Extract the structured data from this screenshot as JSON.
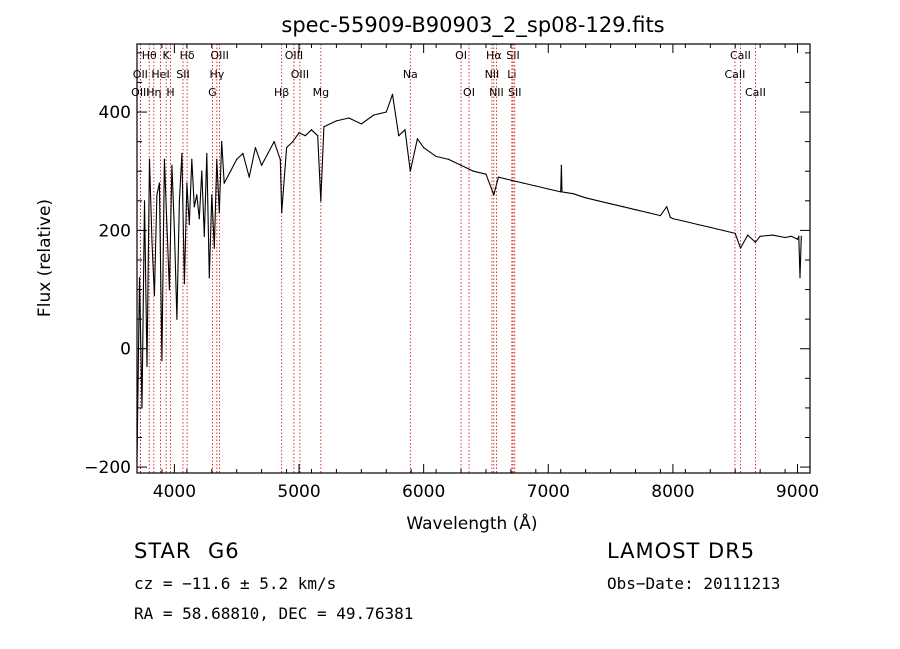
{
  "chart_data": {
    "type": "line",
    "title": "spec-55909-B90903_2_sp08-129.fits",
    "xlabel": "Wavelength (Å)",
    "ylabel": "Flux (relative)",
    "xlim": [
      3700,
      9100
    ],
    "ylim": [
      -210,
      515
    ],
    "xticks": [
      4000,
      5000,
      6000,
      7000,
      8000,
      9000
    ],
    "yticks": [
      -200,
      0,
      200,
      400
    ],
    "grid": false,
    "line_color": "#000000",
    "marker_color": "#cc0000",
    "series": [
      {
        "x": [
          3700,
          3720,
          3740,
          3760,
          3780,
          3800,
          3820,
          3840,
          3860,
          3880,
          3900,
          3920,
          3940,
          3960,
          3980,
          4000,
          4020,
          4040,
          4060,
          4080,
          4100,
          4120,
          4140,
          4160,
          4180,
          4200,
          4220,
          4240,
          4260,
          4280,
          4300,
          4320,
          4340,
          4360,
          4380,
          4400,
          4450,
          4500,
          4550,
          4600,
          4650,
          4700,
          4750,
          4800,
          4850,
          4861,
          4900,
          4950,
          5000,
          5050,
          5100,
          5150,
          5175,
          5200,
          5300,
          5400,
          5500,
          5600,
          5700,
          5750,
          5800,
          5850,
          5893,
          5950,
          6000,
          6100,
          6200,
          6300,
          6400,
          6500,
          6563,
          6600,
          6700,
          6800,
          6900,
          7000,
          7100,
          7105,
          7110,
          7200,
          7300,
          7400,
          7500,
          7600,
          7700,
          7800,
          7900,
          7950,
          7980,
          8000,
          8100,
          8200,
          8300,
          8400,
          8500,
          8542,
          8600,
          8662,
          8700,
          8800,
          8900,
          8950,
          9000,
          9010,
          9020,
          9030
        ],
        "y": [
          -190,
          120,
          -100,
          250,
          -30,
          320,
          180,
          90,
          260,
          280,
          -20,
          320,
          210,
          100,
          310,
          200,
          50,
          250,
          330,
          110,
          280,
          210,
          320,
          240,
          260,
          220,
          300,
          190,
          330,
          120,
          260,
          170,
          320,
          230,
          350,
          280,
          300,
          320,
          330,
          290,
          340,
          310,
          330,
          350,
          320,
          230,
          340,
          350,
          365,
          360,
          370,
          360,
          250,
          375,
          385,
          390,
          380,
          395,
          400,
          430,
          360,
          370,
          300,
          355,
          340,
          325,
          320,
          310,
          300,
          295,
          260,
          290,
          285,
          280,
          275,
          270,
          265,
          310,
          265,
          262,
          255,
          250,
          245,
          240,
          235,
          230,
          225,
          240,
          222,
          220,
          215,
          210,
          205,
          200,
          195,
          170,
          192,
          180,
          190,
          192,
          188,
          190,
          185,
          190,
          120,
          190
        ]
      }
    ],
    "line_markers": [
      {
        "label": "Hθ",
        "x": 3798,
        "row": 0
      },
      {
        "label": "OII",
        "x": 3727,
        "row": 1
      },
      {
        "label": "OIII",
        "x": 3727,
        "row": 2
      },
      {
        "label": "K",
        "x": 3934,
        "row": 0
      },
      {
        "label": "HeI",
        "x": 3889,
        "row": 1
      },
      {
        "label": "Hη",
        "x": 3835,
        "row": 2
      },
      {
        "label": "Hδ",
        "x": 4102,
        "row": 0
      },
      {
        "label": "SII",
        "x": 4069,
        "row": 1
      },
      {
        "label": "H",
        "x": 3969,
        "row": 2
      },
      {
        "label": "OIII",
        "x": 4363,
        "row": 0
      },
      {
        "label": "Hγ",
        "x": 4341,
        "row": 1
      },
      {
        "label": "G",
        "x": 4305,
        "row": 2
      },
      {
        "label": "Hβ",
        "x": 4861,
        "row": 2
      },
      {
        "label": "OIII",
        "x": 4959,
        "row": 0
      },
      {
        "label": "OIII",
        "x": 5007,
        "row": 1
      },
      {
        "label": "Mg",
        "x": 5175,
        "row": 2
      },
      {
        "label": "Na",
        "x": 5893,
        "row": 1
      },
      {
        "label": "OI",
        "x": 6300,
        "row": 0
      },
      {
        "label": "OI",
        "x": 6364,
        "row": 2
      },
      {
        "label": "Hα",
        "x": 6563,
        "row": 0
      },
      {
        "label": "NII",
        "x": 6548,
        "row": 1
      },
      {
        "label": "NII",
        "x": 6584,
        "row": 2
      },
      {
        "label": "SII",
        "x": 6717,
        "row": 0
      },
      {
        "label": "Li",
        "x": 6708,
        "row": 1
      },
      {
        "label": "SII",
        "x": 6731,
        "row": 2
      },
      {
        "label": "CaII",
        "x": 8542,
        "row": 0
      },
      {
        "label": "CaII",
        "x": 8498,
        "row": 1
      },
      {
        "label": "CaII",
        "x": 8662,
        "row": 2
      }
    ]
  },
  "info": {
    "object_class": "STAR",
    "subclass": "G6",
    "survey": "LAMOST DR5",
    "cz": "cz = −11.6 ± 5.2 km/s",
    "obs_date": "Obs−Date: 20111213",
    "radec": "RA =  58.68810, DEC =  49.76381"
  }
}
